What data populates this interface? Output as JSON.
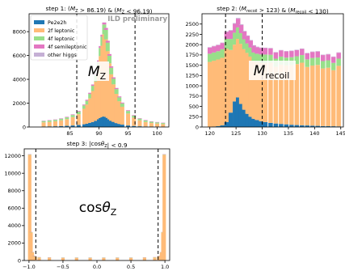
{
  "colors": {
    "Pe2e2h": "#1f77b4",
    "2f_leptonic": "#ffbb78",
    "4f_leptonic": "#98df8a",
    "4f_semileptonic": "#e377c2",
    "other_higgs": "#c5b0d5",
    "cut_lines": "#000000",
    "watermark": "#999999"
  },
  "chart_data": [
    {
      "type": "bar",
      "stacked": true,
      "title": "step 1: (M_Z > 86.19) & (M_Z < 96.19)",
      "title_parts": [
        "step 1: (",
        "M",
        "Z",
        " > 86.19) & (",
        "M",
        "Z",
        " < 96.19)"
      ],
      "watermark": "ILD preliminary",
      "big_label": {
        "base": "M",
        "sub": "Z"
      },
      "xlim": [
        78,
        102
      ],
      "ylim": [
        0,
        9500
      ],
      "xticks": [
        85,
        90,
        95,
        100
      ],
      "yticks": [
        0,
        2000,
        4000,
        6000,
        8000
      ],
      "cut_lines": [
        86.19,
        96.19
      ],
      "legend_location": "upper left",
      "legend": [
        "Pe2e2h",
        "2f leptonic",
        "4f leptonic",
        "4f semileptonic",
        "other higgs"
      ],
      "x": [
        80.5,
        81.5,
        82.5,
        83.5,
        84.5,
        85.5,
        86.5,
        87.5,
        88.0,
        88.5,
        89.0,
        89.5,
        90.0,
        90.3,
        90.6,
        90.9,
        91.2,
        91.5,
        91.8,
        92.1,
        92.5,
        93.0,
        93.5,
        94.0,
        95.0,
        96.0,
        97.0,
        98.0,
        99.0,
        100.0,
        101.0
      ],
      "series": [
        {
          "name": "Pe2e2h",
          "values": [
            40,
            50,
            60,
            80,
            100,
            130,
            170,
            230,
            280,
            350,
            420,
            520,
            650,
            750,
            820,
            880,
            850,
            760,
            640,
            520,
            430,
            330,
            260,
            200,
            130,
            90,
            60,
            45,
            35,
            30,
            25
          ]
        },
        {
          "name": "2f leptonic",
          "values": [
            350,
            380,
            420,
            480,
            560,
            700,
            900,
            1300,
            1600,
            2050,
            2600,
            3300,
            4200,
            5200,
            6000,
            6900,
            6500,
            5600,
            4700,
            3900,
            3150,
            2450,
            1900,
            1500,
            1000,
            700,
            500,
            380,
            300,
            260,
            220
          ]
        },
        {
          "name": "4f leptonic",
          "values": [
            110,
            115,
            120,
            130,
            150,
            180,
            220,
            280,
            320,
            380,
            440,
            520,
            600,
            690,
            760,
            820,
            800,
            720,
            640,
            550,
            480,
            400,
            330,
            280,
            220,
            170,
            140,
            120,
            105,
            95,
            90
          ]
        },
        {
          "name": "4f semileptonic",
          "values": [
            30,
            30,
            32,
            35,
            40,
            45,
            55,
            70,
            80,
            90,
            100,
            115,
            130,
            140,
            150,
            160,
            155,
            145,
            130,
            115,
            105,
            90,
            75,
            65,
            55,
            45,
            40,
            35,
            32,
            30,
            28
          ]
        },
        {
          "name": "other higgs",
          "values": [
            5,
            5,
            5,
            6,
            6,
            7,
            8,
            9,
            10,
            11,
            12,
            13,
            14,
            15,
            15,
            15,
            15,
            14,
            13,
            12,
            11,
            10,
            9,
            8,
            7,
            6,
            6,
            5,
            5,
            5,
            5
          ]
        }
      ]
    },
    {
      "type": "bar",
      "stacked": true,
      "title": "step 2: (M_recoil > 123) & (M_recoil < 130)",
      "title_parts": [
        "step 2: (",
        "M",
        "recoil",
        " > 123) & (",
        "M",
        "recoil",
        " < 130)"
      ],
      "big_label": {
        "base": "M",
        "sub": "recoil"
      },
      "xlim": [
        118.5,
        145.5
      ],
      "ylim": [
        0,
        2750
      ],
      "xticks": [
        120,
        125,
        130,
        135,
        140,
        145
      ],
      "yticks": [
        0,
        250,
        500,
        750,
        1000,
        1250,
        1500,
        1750,
        2000,
        2250,
        2500
      ],
      "cut_lines": [
        123,
        130
      ],
      "x": [
        120.0,
        120.8,
        121.6,
        122.4,
        123.2,
        124.0,
        124.8,
        125.4,
        126.0,
        126.6,
        127.2,
        127.8,
        128.4,
        129.0,
        129.8,
        130.6,
        131.6,
        132.6,
        133.6,
        134.6,
        135.6,
        136.6,
        137.6,
        138.6,
        139.6,
        140.6,
        141.6,
        142.6,
        143.6,
        144.6
      ],
      "series": [
        {
          "name": "Pe2e2h",
          "values": [
            0,
            10,
            20,
            40,
            120,
            350,
            620,
            720,
            560,
            420,
            320,
            250,
            200,
            170,
            140,
            120,
            100,
            85,
            75,
            65,
            55,
            48,
            42,
            38,
            32,
            28,
            22,
            20,
            18,
            15
          ]
        },
        {
          "name": "2f leptonic",
          "values": [
            1580,
            1600,
            1620,
            1640,
            1780,
            1520,
            1380,
            1420,
            1460,
            1470,
            1480,
            1460,
            1400,
            1410,
            1420,
            1440,
            1460,
            1380,
            1440,
            1430,
            1450,
            1480,
            1520,
            1420,
            1460,
            1480,
            1400,
            1420,
            1360,
            1470
          ]
        },
        {
          "name": "4f leptonic",
          "values": [
            200,
            200,
            200,
            210,
            240,
            270,
            290,
            280,
            260,
            240,
            230,
            220,
            210,
            200,
            200,
            200,
            195,
            195,
            195,
            190,
            190,
            190,
            185,
            185,
            185,
            180,
            180,
            180,
            180,
            175
          ]
        },
        {
          "name": "4f semileptonic",
          "values": [
            150,
            150,
            150,
            150,
            170,
            200,
            215,
            210,
            200,
            190,
            180,
            170,
            165,
            160,
            160,
            155,
            155,
            150,
            150,
            150,
            150,
            148,
            148,
            146,
            146,
            145,
            145,
            144,
            144,
            143
          ]
        },
        {
          "name": "other higgs",
          "values": [
            10,
            10,
            10,
            10,
            12,
            15,
            18,
            18,
            16,
            14,
            13,
            12,
            12,
            11,
            11,
            11,
            10,
            10,
            10,
            10,
            10,
            10,
            10,
            10,
            10,
            10,
            10,
            10,
            10,
            10
          ]
        }
      ]
    },
    {
      "type": "bar",
      "stacked": true,
      "title": "step 3: |cosθ_Z| < 0.9",
      "title_parts": [
        "step 3: |cos",
        "θ",
        "Z",
        "| < 0.9"
      ],
      "big_label": {
        "base": "cosθ",
        "sub": "Z"
      },
      "xlim": [
        -1.07,
        1.07
      ],
      "ylim": [
        0,
        12800
      ],
      "xticks": [
        -1.0,
        -0.5,
        0.0,
        0.5,
        1.0
      ],
      "xtick_labels": [
        "−1.0",
        "−0.5",
        "0.0",
        "0.5",
        "1.0"
      ],
      "yticks": [
        0,
        2000,
        4000,
        6000,
        8000,
        10000,
        12000
      ],
      "cut_lines": [
        -0.9,
        0.9
      ],
      "x": [
        -0.99,
        -0.97,
        -0.95,
        -0.93,
        -0.91,
        -0.85,
        -0.7,
        -0.5,
        -0.3,
        -0.1,
        0.1,
        0.3,
        0.5,
        0.7,
        0.85,
        0.91,
        0.93,
        0.95,
        0.97,
        0.99
      ],
      "series": [
        {
          "name": "Pe2e2h",
          "values": [
            20,
            20,
            20,
            20,
            20,
            20,
            20,
            20,
            20,
            20,
            20,
            20,
            20,
            20,
            20,
            20,
            20,
            20,
            20,
            20
          ]
        },
        {
          "name": "2f leptonic",
          "values": [
            12100,
            3200,
            900,
            480,
            420,
            320,
            300,
            280,
            280,
            280,
            280,
            280,
            280,
            300,
            320,
            420,
            480,
            900,
            3200,
            12100
          ]
        },
        {
          "name": "4f leptonic",
          "values": [
            40,
            30,
            30,
            30,
            30,
            30,
            30,
            30,
            30,
            30,
            30,
            30,
            30,
            30,
            30,
            30,
            30,
            30,
            30,
            40
          ]
        },
        {
          "name": "4f semileptonic",
          "values": [
            30,
            20,
            20,
            20,
            20,
            20,
            20,
            20,
            20,
            20,
            20,
            20,
            20,
            20,
            20,
            20,
            20,
            20,
            20,
            30
          ]
        },
        {
          "name": "other higgs",
          "values": [
            5,
            5,
            5,
            5,
            5,
            5,
            5,
            5,
            5,
            5,
            5,
            5,
            5,
            5,
            5,
            5,
            5,
            5,
            5,
            5
          ]
        }
      ]
    }
  ]
}
